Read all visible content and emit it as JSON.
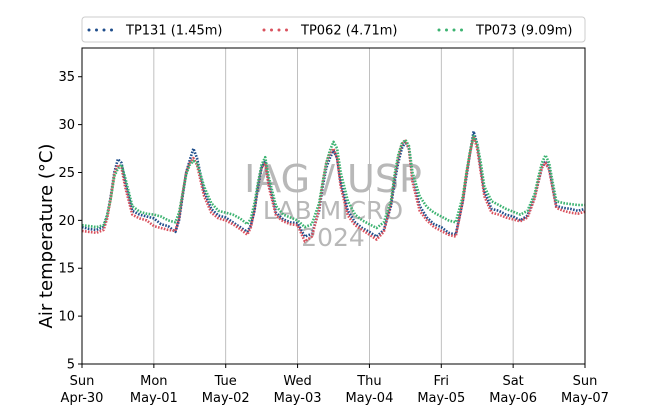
{
  "chart_data": {
    "type": "line",
    "xlabel": "",
    "ylabel": "Air temperature (°C)",
    "ylim": [
      5,
      38
    ],
    "yticks": [
      5,
      10,
      15,
      20,
      25,
      30,
      35
    ],
    "xlim": [
      "2023-04-30",
      "2023-05-07"
    ],
    "xticks": [
      {
        "weekday": "Sun",
        "date": "Apr-30"
      },
      {
        "weekday": "Mon",
        "date": "May-01"
      },
      {
        "weekday": "Tue",
        "date": "May-02"
      },
      {
        "weekday": "Wed",
        "date": "May-03"
      },
      {
        "weekday": "Thu",
        "date": "May-04"
      },
      {
        "weekday": "Fri",
        "date": "May-05"
      },
      {
        "weekday": "Sat",
        "date": "May-06"
      },
      {
        "weekday": "Sun",
        "date": "May-07"
      }
    ],
    "grid": "vertical",
    "legend_position": "top",
    "watermark": [
      "IAG / USP",
      "LAB MICRO",
      "2024"
    ],
    "series": [
      {
        "name": "TP131 (1.45m)",
        "color": "#1f4e8c",
        "style": "dotted",
        "x": [
          0.0,
          0.1,
          0.2,
          0.3,
          0.35,
          0.4,
          0.45,
          0.5,
          0.55,
          0.6,
          0.7,
          0.8,
          0.9,
          1.0,
          1.1,
          1.2,
          1.3,
          1.35,
          1.4,
          1.45,
          1.5,
          1.55,
          1.6,
          1.7,
          1.8,
          1.9,
          2.0,
          2.1,
          2.2,
          2.3,
          2.35,
          2.4,
          2.45,
          2.5,
          2.55,
          2.6,
          2.7,
          2.8,
          2.9,
          3.0,
          3.1,
          3.2,
          3.3,
          3.35,
          3.4,
          3.45,
          3.5,
          3.55,
          3.6,
          3.7,
          3.8,
          3.9,
          4.0,
          4.1,
          4.2,
          4.3,
          4.35,
          4.4,
          4.45,
          4.5,
          4.55,
          4.6,
          4.7,
          4.8,
          4.9,
          5.0,
          5.1,
          5.2,
          5.3,
          5.35,
          5.4,
          5.45,
          5.5,
          5.55,
          5.6,
          5.7,
          5.8,
          5.9,
          6.0,
          6.1,
          6.2,
          6.3,
          6.35,
          6.4,
          6.45,
          6.5,
          6.55,
          6.6,
          6.7,
          6.8,
          6.9,
          7.0
        ],
        "y": [
          19.3,
          19.1,
          19.0,
          19.3,
          20.5,
          22.5,
          25.0,
          26.4,
          26.0,
          24.0,
          21.0,
          20.6,
          20.4,
          20.2,
          19.6,
          19.4,
          18.8,
          20.0,
          22.5,
          25.0,
          26.3,
          27.5,
          26.5,
          23.0,
          21.2,
          20.5,
          20.3,
          19.8,
          19.3,
          18.8,
          19.5,
          21.0,
          23.5,
          25.5,
          26.2,
          24.0,
          20.8,
          20.1,
          19.8,
          19.7,
          18.3,
          18.6,
          21.0,
          23.5,
          25.5,
          26.5,
          27.3,
          26.5,
          24.0,
          21.0,
          19.8,
          19.2,
          18.8,
          18.3,
          19.0,
          21.5,
          24.0,
          26.0,
          27.5,
          28.2,
          27.5,
          24.5,
          21.5,
          20.3,
          19.6,
          19.3,
          18.7,
          18.5,
          22.0,
          24.5,
          27.0,
          29.3,
          28.0,
          25.5,
          23.0,
          21.2,
          21.0,
          20.6,
          20.4,
          20.0,
          20.5,
          22.5,
          24.0,
          25.5,
          26.2,
          25.5,
          23.5,
          21.5,
          21.3,
          21.2,
          21.0,
          21.2
        ]
      },
      {
        "name": "TP062 (4.71m)",
        "color": "#d9525e",
        "style": "dotted",
        "x": [
          0.0,
          0.1,
          0.2,
          0.3,
          0.35,
          0.4,
          0.45,
          0.5,
          0.55,
          0.6,
          0.7,
          0.8,
          0.9,
          1.0,
          1.1,
          1.2,
          1.3,
          1.35,
          1.4,
          1.45,
          1.5,
          1.55,
          1.6,
          1.7,
          1.8,
          1.9,
          2.0,
          2.1,
          2.2,
          2.3,
          2.35,
          2.4,
          2.45,
          2.5,
          2.55,
          2.6,
          2.7,
          2.8,
          2.9,
          3.0,
          3.1,
          3.2,
          3.3,
          3.35,
          3.4,
          3.45,
          3.5,
          3.55,
          3.6,
          3.7,
          3.8,
          3.9,
          4.0,
          4.1,
          4.2,
          4.3,
          4.35,
          4.4,
          4.45,
          4.5,
          4.55,
          4.6,
          4.7,
          4.8,
          4.9,
          5.0,
          5.1,
          5.2,
          5.3,
          5.35,
          5.4,
          5.45,
          5.5,
          5.55,
          5.6,
          5.7,
          5.8,
          5.9,
          6.0,
          6.1,
          6.2,
          6.3,
          6.35,
          6.4,
          6.45,
          6.5,
          6.55,
          6.6,
          6.7,
          6.8,
          6.9,
          7.0
        ],
        "y": [
          18.9,
          18.8,
          18.7,
          19.0,
          20.2,
          22.3,
          24.8,
          25.8,
          25.5,
          23.5,
          20.6,
          20.2,
          20.0,
          19.4,
          19.2,
          19.0,
          18.9,
          20.2,
          22.8,
          25.0,
          26.0,
          26.5,
          25.8,
          22.5,
          20.8,
          20.2,
          20.0,
          19.6,
          19.1,
          18.5,
          19.3,
          21.2,
          23.8,
          25.5,
          26.0,
          23.5,
          20.5,
          19.9,
          19.6,
          19.5,
          17.8,
          18.3,
          21.2,
          24.0,
          26.0,
          27.0,
          27.5,
          26.5,
          23.5,
          20.5,
          19.5,
          19.0,
          18.5,
          18.0,
          18.8,
          21.8,
          24.5,
          26.5,
          28.0,
          28.3,
          27.5,
          24.0,
          21.0,
          20.0,
          19.3,
          18.9,
          18.5,
          18.3,
          22.0,
          24.8,
          27.0,
          28.8,
          27.5,
          25.0,
          22.5,
          20.8,
          20.6,
          20.3,
          20.1,
          19.9,
          20.3,
          22.3,
          24.0,
          25.5,
          26.0,
          25.3,
          23.3,
          21.3,
          21.0,
          20.8,
          20.7,
          20.9
        ]
      },
      {
        "name": "TP073 (9.09m)",
        "color": "#3cb371",
        "style": "dotted",
        "x": [
          0.0,
          0.1,
          0.2,
          0.3,
          0.35,
          0.4,
          0.45,
          0.5,
          0.55,
          0.6,
          0.7,
          0.8,
          0.9,
          1.0,
          1.1,
          1.2,
          1.3,
          1.35,
          1.4,
          1.45,
          1.5,
          1.55,
          1.6,
          1.7,
          1.8,
          1.9,
          2.0,
          2.1,
          2.2,
          2.3,
          2.35,
          2.4,
          2.45,
          2.5,
          2.55,
          2.6,
          2.7,
          2.8,
          2.9,
          3.0,
          3.1,
          3.2,
          3.3,
          3.35,
          3.4,
          3.45,
          3.5,
          3.55,
          3.6,
          3.7,
          3.8,
          3.9,
          4.0,
          4.1,
          4.2,
          4.3,
          4.35,
          4.4,
          4.45,
          4.5,
          4.55,
          4.6,
          4.7,
          4.8,
          4.9,
          5.0,
          5.1,
          5.2,
          5.3,
          5.35,
          5.4,
          5.45,
          5.5,
          5.55,
          5.6,
          5.7,
          5.8,
          5.9,
          6.0,
          6.1,
          6.2,
          6.3,
          6.35,
          6.4,
          6.45,
          6.5,
          6.55,
          6.6,
          6.7,
          6.8,
          6.9,
          7.0
        ],
        "y": [
          19.5,
          19.4,
          19.3,
          19.5,
          20.6,
          22.2,
          24.6,
          25.4,
          25.8,
          24.5,
          21.5,
          20.9,
          20.7,
          20.6,
          20.4,
          20.0,
          19.8,
          20.8,
          22.8,
          24.8,
          25.8,
          26.2,
          26.0,
          23.5,
          21.8,
          21.0,
          20.8,
          20.6,
          20.2,
          19.6,
          20.2,
          21.8,
          24.0,
          25.8,
          26.6,
          24.5,
          21.5,
          20.6,
          20.3,
          20.0,
          19.3,
          19.6,
          21.8,
          24.0,
          26.0,
          27.3,
          28.2,
          27.5,
          25.0,
          22.0,
          20.6,
          20.0,
          19.6,
          19.2,
          19.8,
          22.0,
          24.8,
          26.8,
          28.0,
          28.4,
          27.8,
          25.0,
          22.5,
          21.4,
          20.8,
          20.4,
          20.0,
          19.8,
          22.5,
          25.0,
          27.2,
          28.8,
          28.0,
          26.0,
          23.5,
          22.0,
          21.6,
          21.2,
          20.9,
          20.6,
          21.0,
          22.8,
          24.5,
          26.0,
          26.8,
          26.0,
          24.0,
          22.0,
          21.8,
          21.7,
          21.6,
          21.6
        ]
      }
    ]
  }
}
